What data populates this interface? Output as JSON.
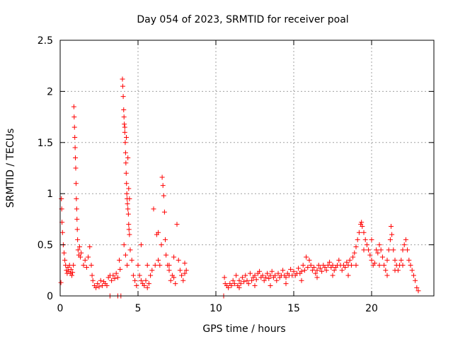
{
  "chart_data": {
    "type": "scatter",
    "title": "Day 054 of 2023, SRMTID for receiver poal",
    "xlabel": "GPS time / hours",
    "ylabel": "SRMTID / TECUs",
    "xlim": [
      0,
      24
    ],
    "ylim": [
      0,
      2.5
    ],
    "x_ticks": [
      0,
      5,
      10,
      15,
      20
    ],
    "x_tick_labels": [
      "0",
      "5",
      "10",
      "15",
      "20"
    ],
    "y_ticks": [
      0,
      0.5,
      1,
      1.5,
      2,
      2.5
    ],
    "y_tick_labels": [
      "0",
      "0.5",
      "1",
      "1.5",
      "2",
      "2.5"
    ],
    "grid": true,
    "marker": "+",
    "color": "#ff0000",
    "series": [
      {
        "name": "SRMTID",
        "points": [
          [
            0.05,
            0.13
          ],
          [
            0.08,
            0.95
          ],
          [
            0.1,
            0.85
          ],
          [
            0.12,
            0.72
          ],
          [
            0.15,
            0.62
          ],
          [
            0.2,
            0.5
          ],
          [
            0.25,
            0.42
          ],
          [
            0.3,
            0.35
          ],
          [
            0.35,
            0.3
          ],
          [
            0.4,
            0.25
          ],
          [
            0.45,
            0.22
          ],
          [
            0.5,
            0.28
          ],
          [
            0.55,
            0.24
          ],
          [
            0.6,
            0.3
          ],
          [
            0.65,
            0.22
          ],
          [
            0.7,
            0.26
          ],
          [
            0.75,
            0.2
          ],
          [
            0.8,
            0.23
          ],
          [
            0.85,
            0.3
          ],
          [
            0.88,
            1.85
          ],
          [
            0.9,
            1.75
          ],
          [
            0.92,
            1.65
          ],
          [
            0.94,
            1.55
          ],
          [
            0.96,
            1.45
          ],
          [
            0.98,
            1.35
          ],
          [
            1.0,
            1.25
          ],
          [
            1.02,
            1.1
          ],
          [
            1.04,
            0.95
          ],
          [
            1.06,
            0.85
          ],
          [
            1.08,
            0.75
          ],
          [
            1.1,
            0.65
          ],
          [
            1.12,
            0.55
          ],
          [
            1.15,
            0.45
          ],
          [
            1.2,
            0.4
          ],
          [
            1.25,
            0.48
          ],
          [
            1.3,
            0.38
          ],
          [
            1.35,
            0.42
          ],
          [
            1.5,
            0.3
          ],
          [
            1.6,
            0.35
          ],
          [
            1.7,
            0.28
          ],
          [
            1.8,
            0.38
          ],
          [
            1.9,
            0.48
          ],
          [
            2.0,
            0.3
          ],
          [
            2.05,
            0.2
          ],
          [
            2.1,
            0.15
          ],
          [
            2.2,
            0.1
          ],
          [
            2.3,
            0.08
          ],
          [
            2.4,
            0.12
          ],
          [
            2.5,
            0.09
          ],
          [
            2.6,
            0.15
          ],
          [
            2.7,
            0.1
          ],
          [
            2.8,
            0.14
          ],
          [
            2.9,
            0.12
          ],
          [
            3.0,
            0.1
          ],
          [
            3.1,
            0.18
          ],
          [
            3.2,
            0.2
          ],
          [
            3.3,
            0.15
          ],
          [
            3.4,
            0.2
          ],
          [
            3.5,
            0.17
          ],
          [
            3.6,
            0.22
          ],
          [
            3.7,
            0.18
          ],
          [
            3.8,
            0.35
          ],
          [
            3.85,
            0.26
          ],
          [
            3.7,
            0.0
          ],
          [
            3.2,
            0.0
          ],
          [
            3.9,
            0.0
          ],
          [
            4.0,
            2.12
          ],
          [
            4.02,
            2.05
          ],
          [
            4.05,
            1.95
          ],
          [
            4.08,
            1.82
          ],
          [
            4.1,
            1.75
          ],
          [
            4.12,
            1.68
          ],
          [
            4.15,
            1.6
          ],
          [
            4.18,
            1.5
          ],
          [
            4.2,
            1.4
          ],
          [
            4.22,
            1.3
          ],
          [
            4.24,
            1.2
          ],
          [
            4.26,
            1.1
          ],
          [
            4.28,
            1.0
          ],
          [
            4.3,
            0.95
          ],
          [
            4.32,
            0.9
          ],
          [
            4.35,
            0.85
          ],
          [
            4.38,
            0.8
          ],
          [
            4.4,
            0.7
          ],
          [
            4.42,
            0.65
          ],
          [
            4.45,
            0.6
          ],
          [
            4.1,
            0.5
          ],
          [
            4.2,
            0.4
          ],
          [
            4.3,
            0.3
          ],
          [
            4.5,
            0.45
          ],
          [
            4.6,
            0.35
          ],
          [
            4.7,
            0.2
          ],
          [
            4.8,
            0.15
          ],
          [
            4.9,
            0.1
          ],
          [
            4.15,
            1.65
          ],
          [
            4.25,
            1.55
          ],
          [
            4.35,
            1.35
          ],
          [
            4.4,
            1.05
          ],
          [
            4.45,
            0.95
          ],
          [
            5.0,
            0.3
          ],
          [
            5.1,
            0.2
          ],
          [
            5.2,
            0.15
          ],
          [
            5.3,
            0.12
          ],
          [
            5.4,
            0.1
          ],
          [
            5.5,
            0.15
          ],
          [
            5.6,
            0.08
          ],
          [
            5.7,
            0.12
          ],
          [
            5.8,
            0.2
          ],
          [
            5.9,
            0.25
          ],
          [
            6.0,
            0.85
          ],
          [
            6.1,
            0.3
          ],
          [
            6.2,
            0.6
          ],
          [
            6.3,
            0.35
          ],
          [
            6.4,
            0.3
          ],
          [
            6.5,
            0.5
          ],
          [
            6.55,
            1.16
          ],
          [
            6.6,
            1.08
          ],
          [
            6.65,
            0.98
          ],
          [
            6.7,
            0.82
          ],
          [
            6.75,
            0.55
          ],
          [
            6.8,
            0.4
          ],
          [
            6.9,
            0.3
          ],
          [
            7.0,
            0.25
          ],
          [
            7.1,
            0.15
          ],
          [
            7.2,
            0.2
          ],
          [
            7.3,
            0.18
          ],
          [
            7.4,
            0.12
          ],
          [
            7.5,
            0.7
          ],
          [
            7.6,
            0.35
          ],
          [
            7.7,
            0.25
          ],
          [
            7.8,
            0.2
          ],
          [
            7.9,
            0.15
          ],
          [
            8.0,
            0.22
          ],
          [
            8.1,
            0.25
          ],
          [
            5.2,
            0.5
          ],
          [
            5.6,
            0.3
          ],
          [
            6.3,
            0.62
          ],
          [
            7.0,
            0.3
          ],
          [
            7.3,
            0.38
          ],
          [
            8.0,
            0.32
          ],
          [
            10.5,
            0.0
          ],
          [
            10.55,
            0.18
          ],
          [
            10.6,
            0.12
          ],
          [
            10.7,
            0.1
          ],
          [
            10.8,
            0.08
          ],
          [
            10.9,
            0.12
          ],
          [
            11.0,
            0.1
          ],
          [
            11.1,
            0.15
          ],
          [
            11.2,
            0.12
          ],
          [
            11.3,
            0.2
          ],
          [
            11.4,
            0.1
          ],
          [
            11.5,
            0.15
          ],
          [
            11.6,
            0.12
          ],
          [
            11.7,
            0.18
          ],
          [
            11.8,
            0.14
          ],
          [
            11.9,
            0.2
          ],
          [
            12.0,
            0.15
          ],
          [
            12.1,
            0.12
          ],
          [
            12.2,
            0.22
          ],
          [
            12.3,
            0.15
          ],
          [
            12.4,
            0.18
          ],
          [
            12.5,
            0.2
          ],
          [
            12.6,
            0.16
          ],
          [
            12.7,
            0.22
          ],
          [
            12.8,
            0.24
          ],
          [
            12.9,
            0.18
          ],
          [
            13.0,
            0.2
          ],
          [
            13.1,
            0.15
          ],
          [
            13.2,
            0.18
          ],
          [
            13.3,
            0.22
          ],
          [
            13.4,
            0.17
          ],
          [
            13.5,
            0.2
          ],
          [
            13.6,
            0.24
          ],
          [
            13.7,
            0.18
          ],
          [
            13.8,
            0.2
          ],
          [
            13.9,
            0.15
          ],
          [
            14.0,
            0.22
          ],
          [
            14.1,
            0.18
          ],
          [
            14.2,
            0.2
          ],
          [
            14.3,
            0.25
          ],
          [
            14.4,
            0.2
          ],
          [
            14.5,
            0.18
          ],
          [
            14.6,
            0.22
          ],
          [
            14.7,
            0.2
          ],
          [
            14.8,
            0.26
          ],
          [
            14.9,
            0.2
          ],
          [
            15.0,
            0.24
          ],
          [
            15.1,
            0.2
          ],
          [
            15.2,
            0.22
          ],
          [
            15.3,
            0.27
          ],
          [
            15.4,
            0.22
          ],
          [
            15.5,
            0.24
          ],
          [
            15.6,
            0.3
          ],
          [
            15.7,
            0.25
          ],
          [
            15.8,
            0.38
          ],
          [
            15.9,
            0.28
          ],
          [
            16.0,
            0.35
          ],
          [
            16.1,
            0.3
          ],
          [
            16.2,
            0.25
          ],
          [
            16.3,
            0.28
          ],
          [
            16.4,
            0.22
          ],
          [
            16.5,
            0.25
          ],
          [
            16.6,
            0.3
          ],
          [
            16.7,
            0.27
          ],
          [
            16.8,
            0.24
          ],
          [
            16.9,
            0.3
          ],
          [
            17.0,
            0.28
          ],
          [
            17.1,
            0.25
          ],
          [
            17.2,
            0.3
          ],
          [
            17.3,
            0.33
          ],
          [
            17.4,
            0.28
          ],
          [
            17.5,
            0.3
          ],
          [
            17.6,
            0.25
          ],
          [
            17.7,
            0.28
          ],
          [
            17.8,
            0.3
          ],
          [
            17.9,
            0.35
          ],
          [
            18.0,
            0.3
          ],
          [
            18.1,
            0.25
          ],
          [
            18.2,
            0.3
          ],
          [
            18.3,
            0.28
          ],
          [
            18.4,
            0.33
          ],
          [
            18.5,
            0.3
          ],
          [
            18.6,
            0.35
          ],
          [
            18.7,
            0.3
          ],
          [
            18.8,
            0.38
          ],
          [
            18.9,
            0.42
          ],
          [
            19.0,
            0.48
          ],
          [
            19.1,
            0.55
          ],
          [
            19.2,
            0.62
          ],
          [
            19.3,
            0.7
          ],
          [
            19.35,
            0.72
          ],
          [
            19.4,
            0.68
          ],
          [
            19.5,
            0.62
          ],
          [
            19.6,
            0.55
          ],
          [
            19.7,
            0.5
          ],
          [
            19.8,
            0.45
          ],
          [
            19.9,
            0.4
          ],
          [
            20.0,
            0.35
          ],
          [
            20.1,
            0.3
          ],
          [
            20.2,
            0.32
          ],
          [
            20.3,
            0.45
          ],
          [
            20.4,
            0.42
          ],
          [
            20.5,
            0.5
          ],
          [
            20.6,
            0.45
          ],
          [
            20.7,
            0.38
          ],
          [
            20.8,
            0.3
          ],
          [
            20.9,
            0.25
          ],
          [
            21.0,
            0.35
          ],
          [
            21.1,
            0.45
          ],
          [
            21.2,
            0.55
          ],
          [
            21.25,
            0.68
          ],
          [
            21.3,
            0.6
          ],
          [
            21.4,
            0.45
          ],
          [
            21.5,
            0.35
          ],
          [
            21.6,
            0.3
          ],
          [
            21.7,
            0.25
          ],
          [
            21.8,
            0.3
          ],
          [
            21.9,
            0.35
          ],
          [
            22.0,
            0.45
          ],
          [
            22.1,
            0.5
          ],
          [
            22.2,
            0.55
          ],
          [
            22.3,
            0.45
          ],
          [
            22.4,
            0.35
          ],
          [
            22.5,
            0.3
          ],
          [
            22.6,
            0.25
          ],
          [
            22.7,
            0.2
          ],
          [
            22.8,
            0.15
          ],
          [
            22.9,
            0.08
          ],
          [
            23.0,
            0.05
          ],
          [
            19.0,
            0.3
          ],
          [
            19.5,
            0.45
          ],
          [
            20.0,
            0.55
          ],
          [
            20.5,
            0.3
          ],
          [
            21.0,
            0.2
          ],
          [
            21.5,
            0.25
          ],
          [
            22.0,
            0.3
          ],
          [
            18.5,
            0.2
          ],
          [
            17.5,
            0.2
          ],
          [
            16.5,
            0.18
          ],
          [
            15.5,
            0.15
          ],
          [
            14.5,
            0.12
          ],
          [
            13.5,
            0.1
          ],
          [
            12.5,
            0.1
          ],
          [
            11.5,
            0.08
          ]
        ]
      }
    ]
  }
}
